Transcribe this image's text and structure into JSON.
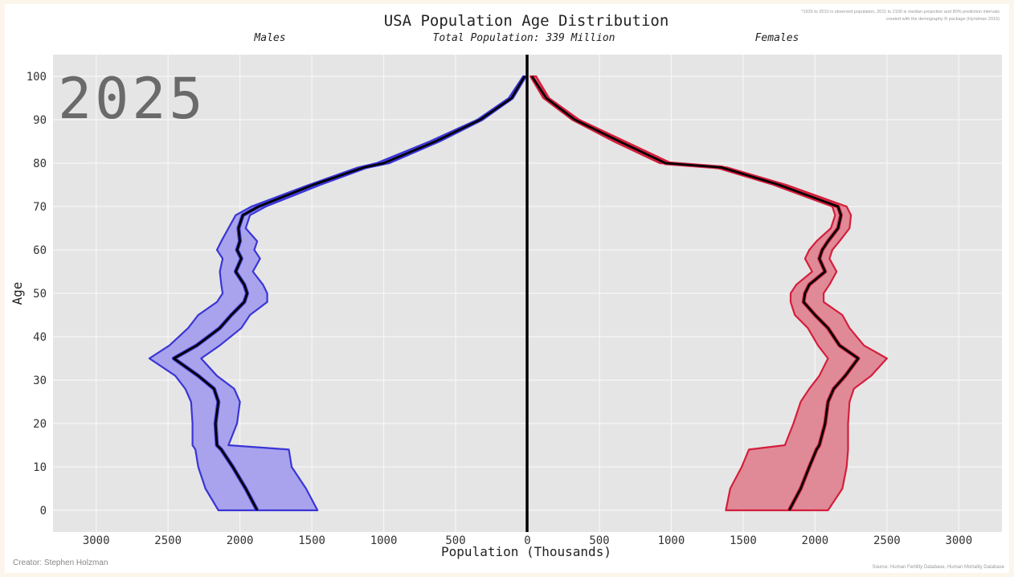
{
  "chart_data": {
    "type": "area",
    "title": "USA Population Age Distribution",
    "subtitle": "Total Population: 339 Million",
    "year": "2025",
    "left_label": "Males",
    "right_label": "Females",
    "xlabel": "Population (Thousands)",
    "ylabel": "Age",
    "note_line1": "*1933 to 2010 is observed population, 2011 to 2100 is median projection and 80% prediction intervals",
    "note_line2": "created with the demography R package (Hyndman 2015)",
    "creator": "Creator: Stephen Holzman",
    "source": "Source: Human Fertility Database, Human Mortality Database",
    "xlim": [
      -3300,
      3300
    ],
    "ylim": [
      -5,
      105
    ],
    "x_ticks": [
      {
        "value": -3000,
        "label": "3000"
      },
      {
        "value": -2500,
        "label": "2500"
      },
      {
        "value": -2000,
        "label": "2000"
      },
      {
        "value": -1500,
        "label": "1500"
      },
      {
        "value": -1000,
        "label": "1000"
      },
      {
        "value": -500,
        "label": "500"
      },
      {
        "value": 0,
        "label": "0"
      },
      {
        "value": 500,
        "label": "500"
      },
      {
        "value": 1000,
        "label": "1000"
      },
      {
        "value": 1500,
        "label": "1500"
      },
      {
        "value": 2000,
        "label": "2000"
      },
      {
        "value": 2500,
        "label": "2500"
      },
      {
        "value": 3000,
        "label": "3000"
      }
    ],
    "y_ticks": [
      0,
      10,
      20,
      30,
      40,
      50,
      60,
      70,
      80,
      90,
      100
    ],
    "grid": true,
    "colors": {
      "male": "#3a35d6",
      "male_fill": "#a8a3ec",
      "female": "#d41e3c",
      "female_fill": "#e08a97",
      "median": "#000000",
      "panel": "#e5e5e5"
    },
    "ages": [
      0,
      5,
      10,
      14,
      15,
      20,
      25,
      28,
      31,
      35,
      38,
      42,
      45,
      48,
      50,
      52,
      55,
      58,
      60,
      62,
      65,
      68,
      70,
      75,
      79,
      80,
      85,
      90,
      95,
      100
    ],
    "series": [
      {
        "name": "Males",
        "median": [
          1880,
          1960,
          2050,
          2130,
          2160,
          2170,
          2150,
          2180,
          2290,
          2460,
          2300,
          2140,
          2060,
          1970,
          1950,
          1970,
          2030,
          1990,
          2020,
          2000,
          2010,
          1980,
          1870,
          1490,
          1140,
          1000,
          640,
          330,
          110,
          20
        ],
        "lower": [
          1460,
          1540,
          1640,
          1660,
          2080,
          2020,
          2000,
          2040,
          2160,
          2270,
          2140,
          1990,
          1930,
          1810,
          1810,
          1840,
          1910,
          1860,
          1900,
          1880,
          1960,
          1930,
          1820,
          1440,
          1110,
          960,
          610,
          310,
          100,
          10
        ],
        "upper": [
          2150,
          2240,
          2290,
          2310,
          2330,
          2330,
          2340,
          2380,
          2450,
          2630,
          2490,
          2360,
          2290,
          2160,
          2120,
          2130,
          2140,
          2120,
          2160,
          2130,
          2080,
          2030,
          1920,
          1520,
          1180,
          1050,
          680,
          350,
          130,
          30
        ]
      },
      {
        "name": "Females",
        "median": [
          1820,
          1900,
          1960,
          2010,
          2030,
          2070,
          2090,
          2130,
          2210,
          2300,
          2170,
          2090,
          2000,
          1920,
          1930,
          1960,
          2070,
          2030,
          2050,
          2090,
          2160,
          2180,
          2160,
          1750,
          1350,
          960,
          640,
          330,
          130,
          30
        ],
        "lower": [
          1380,
          1410,
          1490,
          1540,
          1790,
          1850,
          1900,
          1960,
          2030,
          2090,
          2020,
          1950,
          1860,
          1830,
          1830,
          1870,
          1980,
          1930,
          1960,
          2010,
          2110,
          2140,
          2120,
          1710,
          1310,
          920,
          600,
          310,
          110,
          20
        ],
        "upper": [
          2090,
          2190,
          2220,
          2230,
          2230,
          2230,
          2240,
          2270,
          2390,
          2500,
          2340,
          2240,
          2190,
          2060,
          2060,
          2100,
          2150,
          2100,
          2120,
          2170,
          2240,
          2250,
          2220,
          1800,
          1390,
          1000,
          680,
          360,
          150,
          60
        ]
      }
    ]
  }
}
